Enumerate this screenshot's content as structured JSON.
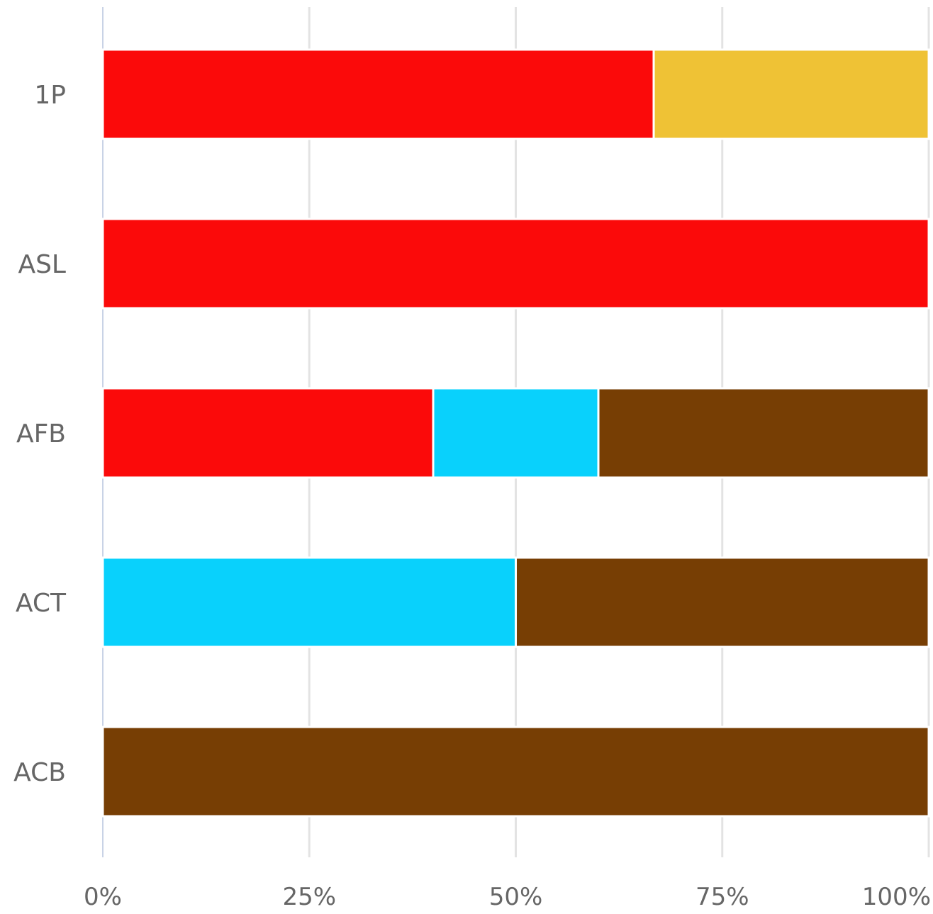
{
  "chart_data": {
    "type": "bar",
    "orientation": "horizontal",
    "stacked": "percent",
    "categories": [
      "1P",
      "ASL",
      "AFB",
      "ACT",
      "ACB"
    ],
    "series": [
      {
        "color": "#fb0a0a",
        "values": [
          66.7,
          100,
          40,
          0,
          0
        ]
      },
      {
        "color": "#efc235",
        "values": [
          33.3,
          0,
          0,
          0,
          0
        ]
      },
      {
        "color": "#09d1fc",
        "values": [
          0,
          0,
          20,
          50,
          0
        ]
      },
      {
        "color": "#773e04",
        "values": [
          0,
          0,
          40,
          50,
          100
        ]
      }
    ],
    "xlim": [
      0,
      100
    ],
    "xticks": [
      "0%",
      "25%",
      "50%",
      "75%",
      "100%"
    ],
    "grid": true,
    "legend": "none"
  }
}
